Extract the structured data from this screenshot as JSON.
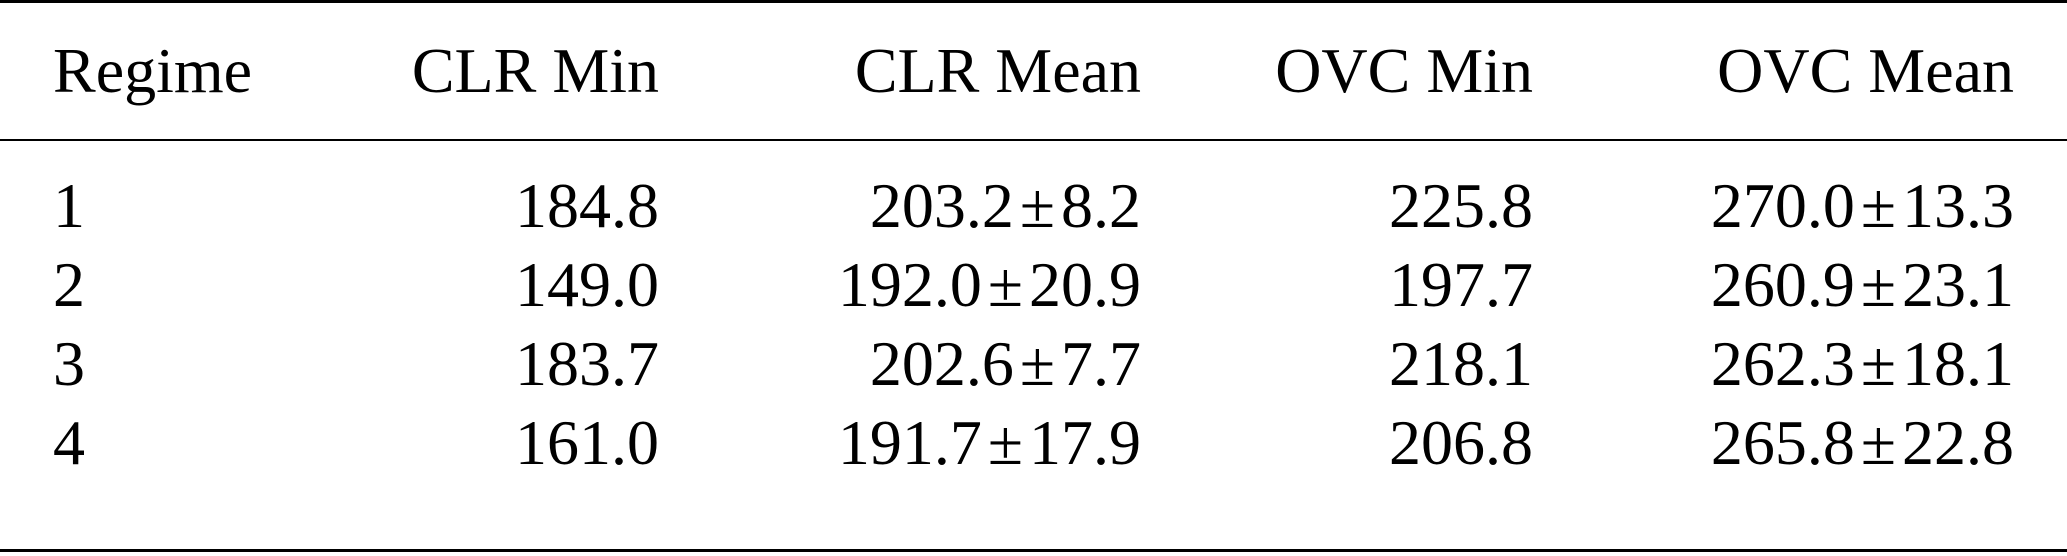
{
  "table": {
    "headers": [
      "Regime",
      "CLR Min",
      "CLR Mean",
      "OVC Min",
      "OVC Mean"
    ],
    "rows": [
      {
        "regime": "1",
        "clr_min": "184.8",
        "clr_mean": "203.2",
        "clr_sd": "8.2",
        "ovc_min": "225.8",
        "ovc_mean": "270.0",
        "ovc_sd": "13.3"
      },
      {
        "regime": "2",
        "clr_min": "149.0",
        "clr_mean": "192.0",
        "clr_sd": "20.9",
        "ovc_min": "197.7",
        "ovc_mean": "260.9",
        "ovc_sd": "23.1"
      },
      {
        "regime": "3",
        "clr_min": "183.7",
        "clr_mean": "202.6",
        "clr_sd": "7.7",
        "ovc_min": "218.1",
        "ovc_mean": "262.3",
        "ovc_sd": "18.1"
      },
      {
        "regime": "4",
        "clr_min": "161.0",
        "clr_mean": "191.7",
        "clr_sd": "17.9",
        "ovc_min": "206.8",
        "ovc_mean": "265.8",
        "ovc_sd": "22.8"
      }
    ],
    "pm_symbol": "±"
  }
}
